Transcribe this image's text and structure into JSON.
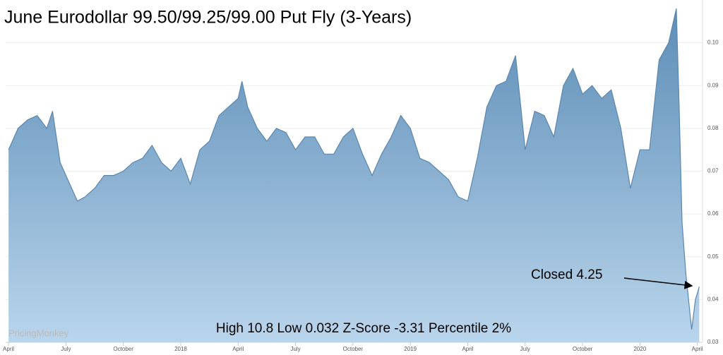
{
  "chart_data": {
    "type": "area",
    "title": "June Eurodollar 99.50/99.25/99.00 Put Fly (3-Years)",
    "watermark": "PricingMonkey",
    "annotations": [
      "Closed 4.25",
      "High 10.8 Low 0.032 Z-Score -3.31 Percentile 2%"
    ],
    "color": "#5a87b0",
    "grid": true,
    "xlim": [
      -0.15,
      36.27
    ],
    "ylim": [
      0.03,
      0.11
    ],
    "xticks": [
      {
        "value": 0,
        "label": "April"
      },
      {
        "value": 3,
        "label": "July"
      },
      {
        "value": 6,
        "label": "October"
      },
      {
        "value": 9,
        "label": "2018"
      },
      {
        "value": 12,
        "label": "April"
      },
      {
        "value": 15,
        "label": "July"
      },
      {
        "value": 18,
        "label": "October"
      },
      {
        "value": 21,
        "label": "2019"
      },
      {
        "value": 24,
        "label": "April"
      },
      {
        "value": 27,
        "label": "July"
      },
      {
        "value": 30,
        "label": "October"
      },
      {
        "value": 33,
        "label": "2020"
      },
      {
        "value": 36,
        "label": "April"
      }
    ],
    "yticks": [
      0.03,
      0.04,
      0.05,
      0.06,
      0.07,
      0.08,
      0.09,
      {
        "value": 0.1,
        "label": "0.10"
      }
    ],
    "x": [
      0,
      0.5,
      1,
      1.5,
      2,
      2.3,
      2.7,
      3,
      3.3,
      3.6,
      4,
      4.5,
      5,
      5.5,
      6,
      6.5,
      7,
      7.5,
      8,
      8.5,
      9,
      9.5,
      10,
      10.5,
      11,
      11.5,
      12,
      12.2,
      12.5,
      13,
      13.5,
      14,
      14.5,
      15,
      15.5,
      16,
      16.5,
      17,
      17.5,
      18,
      18.5,
      19,
      19.5,
      20,
      20.5,
      21,
      21.5,
      22,
      22.5,
      23,
      23.5,
      24,
      24.5,
      25,
      25.5,
      26,
      26.5,
      27,
      27.5,
      28,
      28.5,
      29,
      29.5,
      30,
      30.5,
      31,
      31.5,
      32,
      32.5,
      33,
      33.5,
      34,
      34.5,
      34.9,
      35.05,
      35.2,
      35.4,
      35.7,
      35.9,
      36.1
    ],
    "values": [
      0.075,
      0.08,
      0.082,
      0.083,
      0.08,
      0.084,
      0.072,
      0.069,
      0.066,
      0.063,
      0.064,
      0.066,
      0.069,
      0.069,
      0.07,
      0.072,
      0.073,
      0.076,
      0.072,
      0.07,
      0.073,
      0.067,
      0.075,
      0.077,
      0.083,
      0.085,
      0.087,
      0.091,
      0.085,
      0.08,
      0.077,
      0.08,
      0.079,
      0.075,
      0.078,
      0.078,
      0.074,
      0.074,
      0.078,
      0.08,
      0.074,
      0.069,
      0.074,
      0.078,
      0.083,
      0.08,
      0.073,
      0.072,
      0.07,
      0.068,
      0.064,
      0.063,
      0.073,
      0.085,
      0.09,
      0.091,
      0.097,
      0.075,
      0.084,
      0.083,
      0.078,
      0.09,
      0.094,
      0.088,
      0.09,
      0.087,
      0.089,
      0.08,
      0.066,
      0.075,
      0.075,
      0.096,
      0.1,
      0.108,
      0.085,
      0.058,
      0.046,
      0.033,
      0.04,
      0.043
    ]
  }
}
